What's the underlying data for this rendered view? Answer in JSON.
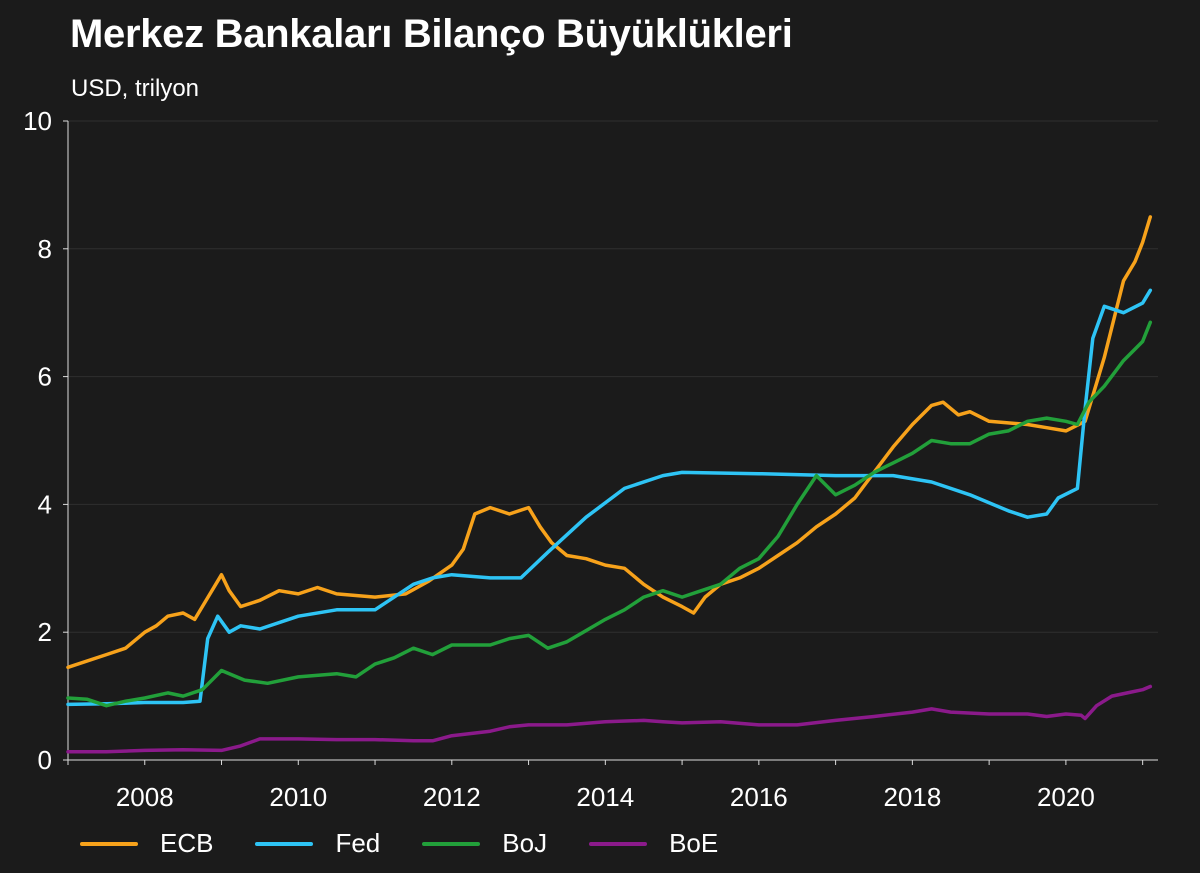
{
  "chart_data": {
    "type": "line",
    "title": "Merkez Bankaları Bilanço Büyüklükleri",
    "subtitle": "USD, trilyon",
    "xlim": [
      2007.0,
      2021.2
    ],
    "ylim": [
      0,
      10
    ],
    "x_ticks": [
      2008,
      2010,
      2012,
      2014,
      2016,
      2018,
      2020
    ],
    "x_tick_labels": [
      "2008",
      "2010",
      "2012",
      "2014",
      "2016",
      "2018",
      "2020"
    ],
    "y_ticks": [
      0,
      2,
      4,
      6,
      8,
      10
    ],
    "y_tick_labels": [
      "0",
      "2",
      "4",
      "6",
      "8",
      "10"
    ],
    "grid": true,
    "legend_position": "bottom",
    "series": [
      {
        "name": "ECB",
        "color": "#f7a21b",
        "points": [
          [
            2007.0,
            1.45
          ],
          [
            2007.5,
            1.65
          ],
          [
            2007.75,
            1.75
          ],
          [
            2008.0,
            2.0
          ],
          [
            2008.15,
            2.1
          ],
          [
            2008.3,
            2.25
          ],
          [
            2008.5,
            2.3
          ],
          [
            2008.65,
            2.2
          ],
          [
            2008.85,
            2.6
          ],
          [
            2009.0,
            2.9
          ],
          [
            2009.1,
            2.65
          ],
          [
            2009.25,
            2.4
          ],
          [
            2009.5,
            2.5
          ],
          [
            2009.75,
            2.65
          ],
          [
            2010.0,
            2.6
          ],
          [
            2010.25,
            2.7
          ],
          [
            2010.5,
            2.6
          ],
          [
            2011.0,
            2.55
          ],
          [
            2011.4,
            2.6
          ],
          [
            2011.7,
            2.8
          ],
          [
            2012.0,
            3.05
          ],
          [
            2012.15,
            3.3
          ],
          [
            2012.3,
            3.85
          ],
          [
            2012.5,
            3.95
          ],
          [
            2012.75,
            3.85
          ],
          [
            2013.0,
            3.95
          ],
          [
            2013.15,
            3.65
          ],
          [
            2013.3,
            3.4
          ],
          [
            2013.5,
            3.2
          ],
          [
            2013.75,
            3.15
          ],
          [
            2014.0,
            3.05
          ],
          [
            2014.25,
            3.0
          ],
          [
            2014.5,
            2.75
          ],
          [
            2014.75,
            2.55
          ],
          [
            2015.0,
            2.4
          ],
          [
            2015.15,
            2.3
          ],
          [
            2015.3,
            2.55
          ],
          [
            2015.5,
            2.75
          ],
          [
            2015.75,
            2.85
          ],
          [
            2016.0,
            3.0
          ],
          [
            2016.25,
            3.2
          ],
          [
            2016.5,
            3.4
          ],
          [
            2016.75,
            3.65
          ],
          [
            2017.0,
            3.85
          ],
          [
            2017.25,
            4.1
          ],
          [
            2017.5,
            4.5
          ],
          [
            2017.75,
            4.9
          ],
          [
            2018.0,
            5.25
          ],
          [
            2018.25,
            5.55
          ],
          [
            2018.4,
            5.6
          ],
          [
            2018.6,
            5.4
          ],
          [
            2018.75,
            5.45
          ],
          [
            2019.0,
            5.3
          ],
          [
            2019.5,
            5.25
          ],
          [
            2019.75,
            5.2
          ],
          [
            2020.0,
            5.15
          ],
          [
            2020.25,
            5.3
          ],
          [
            2020.5,
            6.3
          ],
          [
            2020.75,
            7.5
          ],
          [
            2020.9,
            7.8
          ],
          [
            2021.0,
            8.1
          ],
          [
            2021.1,
            8.5
          ]
        ]
      },
      {
        "name": "Fed",
        "color": "#2ec4f5",
        "points": [
          [
            2007.0,
            0.87
          ],
          [
            2007.5,
            0.88
          ],
          [
            2008.0,
            0.9
          ],
          [
            2008.5,
            0.9
          ],
          [
            2008.72,
            0.92
          ],
          [
            2008.82,
            1.9
          ],
          [
            2008.95,
            2.25
          ],
          [
            2009.1,
            2.0
          ],
          [
            2009.25,
            2.1
          ],
          [
            2009.5,
            2.05
          ],
          [
            2010.0,
            2.25
          ],
          [
            2010.5,
            2.35
          ],
          [
            2011.0,
            2.35
          ],
          [
            2011.5,
            2.75
          ],
          [
            2011.75,
            2.85
          ],
          [
            2012.0,
            2.9
          ],
          [
            2012.5,
            2.85
          ],
          [
            2012.9,
            2.85
          ],
          [
            2013.25,
            3.25
          ],
          [
            2013.75,
            3.8
          ],
          [
            2014.25,
            4.25
          ],
          [
            2014.75,
            4.45
          ],
          [
            2015.0,
            4.5
          ],
          [
            2016.0,
            4.48
          ],
          [
            2017.0,
            4.45
          ],
          [
            2017.75,
            4.45
          ],
          [
            2018.25,
            4.35
          ],
          [
            2018.75,
            4.15
          ],
          [
            2019.25,
            3.9
          ],
          [
            2019.5,
            3.8
          ],
          [
            2019.75,
            3.85
          ],
          [
            2019.9,
            4.1
          ],
          [
            2020.15,
            4.25
          ],
          [
            2020.25,
            5.5
          ],
          [
            2020.35,
            6.6
          ],
          [
            2020.5,
            7.1
          ],
          [
            2020.75,
            7.0
          ],
          [
            2021.0,
            7.15
          ],
          [
            2021.1,
            7.35
          ]
        ]
      },
      {
        "name": "BoJ",
        "color": "#22a03a",
        "points": [
          [
            2007.0,
            0.97
          ],
          [
            2007.25,
            0.95
          ],
          [
            2007.5,
            0.85
          ],
          [
            2007.75,
            0.92
          ],
          [
            2008.0,
            0.97
          ],
          [
            2008.3,
            1.05
          ],
          [
            2008.5,
            1.0
          ],
          [
            2008.75,
            1.1
          ],
          [
            2009.0,
            1.4
          ],
          [
            2009.3,
            1.25
          ],
          [
            2009.6,
            1.2
          ],
          [
            2010.0,
            1.3
          ],
          [
            2010.5,
            1.35
          ],
          [
            2010.75,
            1.3
          ],
          [
            2011.0,
            1.5
          ],
          [
            2011.25,
            1.6
          ],
          [
            2011.5,
            1.75
          ],
          [
            2011.75,
            1.65
          ],
          [
            2012.0,
            1.8
          ],
          [
            2012.5,
            1.8
          ],
          [
            2012.75,
            1.9
          ],
          [
            2013.0,
            1.95
          ],
          [
            2013.25,
            1.75
          ],
          [
            2013.5,
            1.85
          ],
          [
            2014.0,
            2.2
          ],
          [
            2014.25,
            2.35
          ],
          [
            2014.5,
            2.55
          ],
          [
            2014.75,
            2.65
          ],
          [
            2015.0,
            2.55
          ],
          [
            2015.25,
            2.65
          ],
          [
            2015.5,
            2.75
          ],
          [
            2015.75,
            3.0
          ],
          [
            2016.0,
            3.15
          ],
          [
            2016.25,
            3.5
          ],
          [
            2016.5,
            4.0
          ],
          [
            2016.75,
            4.45
          ],
          [
            2017.0,
            4.15
          ],
          [
            2017.25,
            4.3
          ],
          [
            2017.5,
            4.5
          ],
          [
            2017.75,
            4.65
          ],
          [
            2018.0,
            4.8
          ],
          [
            2018.25,
            5.0
          ],
          [
            2018.5,
            4.95
          ],
          [
            2018.75,
            4.95
          ],
          [
            2019.0,
            5.1
          ],
          [
            2019.25,
            5.15
          ],
          [
            2019.5,
            5.3
          ],
          [
            2019.75,
            5.35
          ],
          [
            2020.0,
            5.3
          ],
          [
            2020.15,
            5.25
          ],
          [
            2020.3,
            5.6
          ],
          [
            2020.5,
            5.85
          ],
          [
            2020.75,
            6.25
          ],
          [
            2021.0,
            6.55
          ],
          [
            2021.1,
            6.85
          ]
        ]
      },
      {
        "name": "BoE",
        "color": "#8b1a8b",
        "points": [
          [
            2007.0,
            0.13
          ],
          [
            2007.5,
            0.13
          ],
          [
            2008.0,
            0.15
          ],
          [
            2008.5,
            0.16
          ],
          [
            2009.0,
            0.15
          ],
          [
            2009.25,
            0.22
          ],
          [
            2009.5,
            0.33
          ],
          [
            2009.75,
            0.33
          ],
          [
            2010.0,
            0.33
          ],
          [
            2010.5,
            0.32
          ],
          [
            2011.0,
            0.32
          ],
          [
            2011.5,
            0.3
          ],
          [
            2011.75,
            0.3
          ],
          [
            2012.0,
            0.38
          ],
          [
            2012.5,
            0.45
          ],
          [
            2012.75,
            0.52
          ],
          [
            2013.0,
            0.55
          ],
          [
            2013.5,
            0.55
          ],
          [
            2014.0,
            0.6
          ],
          [
            2014.5,
            0.62
          ],
          [
            2014.75,
            0.6
          ],
          [
            2015.0,
            0.58
          ],
          [
            2015.5,
            0.6
          ],
          [
            2016.0,
            0.55
          ],
          [
            2016.5,
            0.55
          ],
          [
            2017.0,
            0.62
          ],
          [
            2017.5,
            0.68
          ],
          [
            2018.0,
            0.75
          ],
          [
            2018.25,
            0.8
          ],
          [
            2018.5,
            0.75
          ],
          [
            2019.0,
            0.72
          ],
          [
            2019.5,
            0.72
          ],
          [
            2019.75,
            0.68
          ],
          [
            2020.0,
            0.72
          ],
          [
            2020.2,
            0.7
          ],
          [
            2020.25,
            0.65
          ],
          [
            2020.4,
            0.85
          ],
          [
            2020.6,
            1.0
          ],
          [
            2020.8,
            1.05
          ],
          [
            2021.0,
            1.1
          ],
          [
            2021.1,
            1.15
          ]
        ]
      }
    ]
  }
}
